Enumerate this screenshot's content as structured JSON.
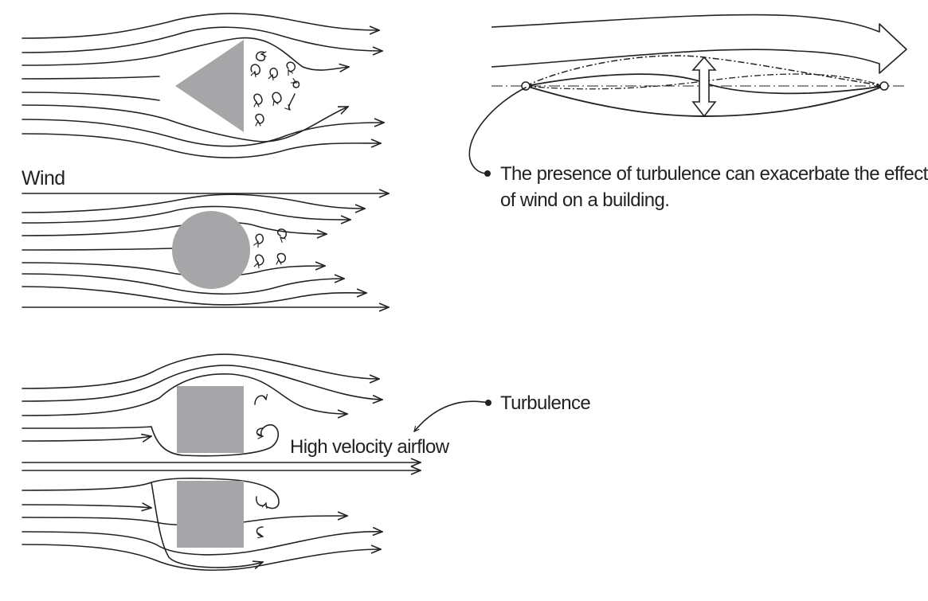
{
  "labels": {
    "wind": "Wind",
    "high_velocity": "High velocity airflow",
    "turbulence": "Turbulence",
    "caption_line1": "The presence of turbulence can exacerbate the effects",
    "caption_line2": "of wind on a building."
  },
  "colors": {
    "obstacle": "#a6a6a8",
    "line": "#222222"
  }
}
